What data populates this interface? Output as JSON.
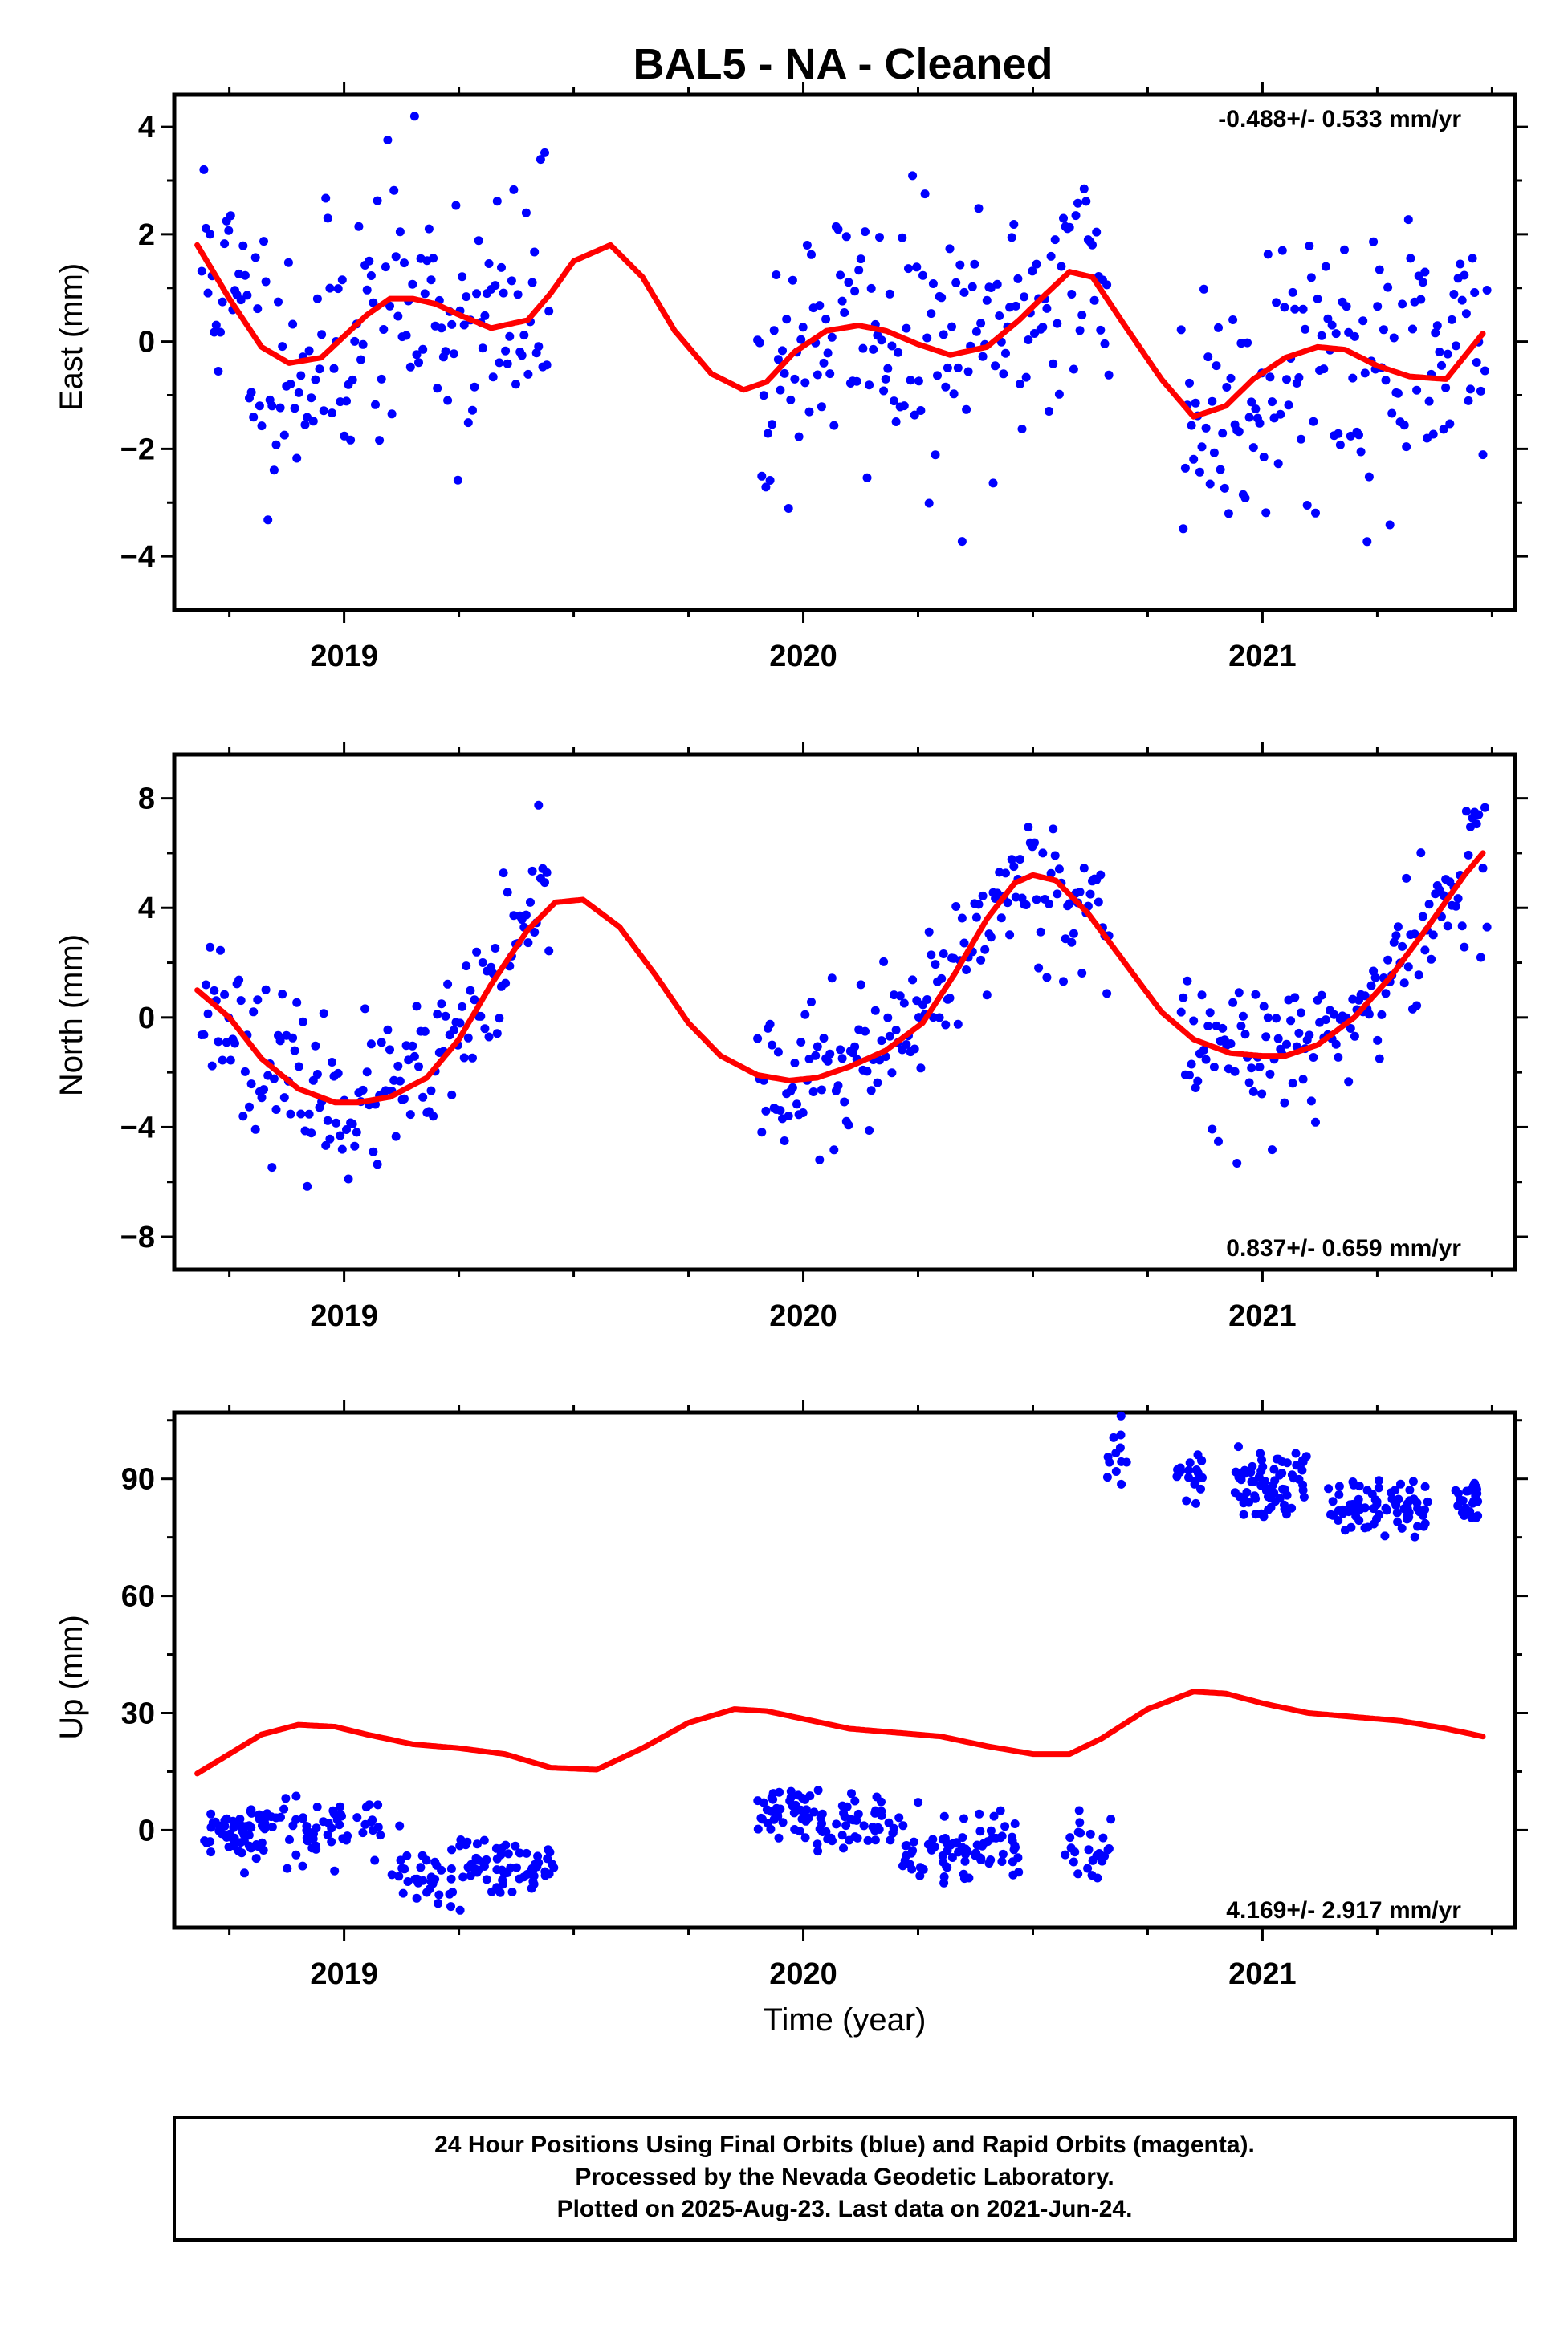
{
  "figure": {
    "title": "BAL5  - NA - Cleaned",
    "xlabel": "Time (year)",
    "footer": [
      "24 Hour Positions Using Final Orbits (blue) and Rapid Orbits (magenta).",
      "Processed by the Nevada Geodetic Laboratory.",
      "Plotted on 2025-Aug-23. Last data on 2021-Jun-24."
    ]
  },
  "chart_data": [
    {
      "type": "scatter",
      "panel": "east",
      "ylabel": "East (mm)",
      "rate": "-0.488+/- 0.533 mm/yr",
      "xlim": [
        2018.63,
        2021.55
      ],
      "ylim": [
        -5.0,
        4.6
      ],
      "xticks": [
        2019,
        2020,
        2021
      ],
      "yticks": [
        -4,
        -2,
        0,
        2,
        4
      ],
      "point_color": "#0000ff",
      "line_color": "#ff0000",
      "gaps": [
        [
          2019.45,
          2019.9
        ],
        [
          2020.67,
          2020.82
        ]
      ],
      "seed": 11,
      "scatter_sigma": 1.25,
      "series": [
        {
          "name": "model",
          "x": [
            2018.68,
            2018.75,
            2018.82,
            2018.88,
            2018.95,
            2019.0,
            2019.05,
            2019.1,
            2019.15,
            2019.2,
            2019.25,
            2019.32,
            2019.4,
            2019.45,
            2019.5,
            2019.58,
            2019.65,
            2019.72,
            2019.8,
            2019.87,
            2019.92,
            2019.98,
            2020.05,
            2020.12,
            2020.18,
            2020.25,
            2020.32,
            2020.4,
            2020.47,
            2020.53,
            2020.58,
            2020.63,
            2020.7,
            2020.78,
            2020.85,
            2020.92,
            2020.98,
            2021.05,
            2021.12,
            2021.18,
            2021.25,
            2021.32,
            2021.4,
            2021.48
          ],
          "y": [
            1.8,
            0.8,
            -0.1,
            -0.4,
            -0.3,
            0.1,
            0.5,
            0.8,
            0.8,
            0.7,
            0.5,
            0.25,
            0.4,
            0.9,
            1.5,
            1.8,
            1.2,
            0.2,
            -0.6,
            -0.9,
            -0.75,
            -0.2,
            0.2,
            0.3,
            0.2,
            -0.05,
            -0.25,
            -0.1,
            0.4,
            0.9,
            1.3,
            1.2,
            0.3,
            -0.7,
            -1.4,
            -1.2,
            -0.7,
            -0.3,
            -0.1,
            -0.15,
            -0.45,
            -0.65,
            -0.7,
            0.15
          ]
        }
      ]
    },
    {
      "type": "scatter",
      "panel": "north",
      "ylabel": "North (mm)",
      "rate": "0.837+/- 0.659 mm/yr",
      "xlim": [
        2018.63,
        2021.55
      ],
      "ylim": [
        -9.2,
        9.6
      ],
      "xticks": [
        2019,
        2020,
        2021
      ],
      "yticks": [
        -8,
        -4,
        0,
        4,
        8
      ],
      "point_color": "#0000ff",
      "line_color": "#ff0000",
      "gaps": [
        [
          2019.45,
          2019.9
        ],
        [
          2020.67,
          2020.82
        ]
      ],
      "seed": 23,
      "scatter_sigma": 1.35,
      "series": [
        {
          "name": "model",
          "x": [
            2018.68,
            2018.75,
            2018.82,
            2018.9,
            2018.98,
            2019.03,
            2019.1,
            2019.18,
            2019.25,
            2019.32,
            2019.4,
            2019.46,
            2019.52,
            2019.6,
            2019.68,
            2019.75,
            2019.82,
            2019.9,
            2019.97,
            2020.03,
            2020.1,
            2020.18,
            2020.26,
            2020.33,
            2020.4,
            2020.46,
            2020.5,
            2020.55,
            2020.62,
            2020.7,
            2020.78,
            2020.85,
            2020.93,
            2021.0,
            2021.05,
            2021.12,
            2021.2,
            2021.28,
            2021.36,
            2021.44,
            2021.48
          ],
          "y": [
            1.0,
            0.0,
            -1.5,
            -2.6,
            -3.1,
            -3.1,
            -2.9,
            -2.2,
            -0.8,
            1.2,
            3.2,
            4.2,
            4.3,
            3.3,
            1.5,
            -0.2,
            -1.4,
            -2.1,
            -2.3,
            -2.2,
            -1.8,
            -1.2,
            -0.2,
            1.6,
            3.6,
            4.9,
            5.2,
            5.0,
            3.8,
            2.0,
            0.2,
            -0.8,
            -1.3,
            -1.4,
            -1.4,
            -1.0,
            0.0,
            1.5,
            3.3,
            5.2,
            6.0
          ]
        }
      ]
    },
    {
      "type": "scatter",
      "panel": "up",
      "ylabel": "Up (mm)",
      "rate": "4.169+/- 2.917 mm/yr",
      "xlim": [
        2018.63,
        2021.55
      ],
      "ylim": [
        -25,
        107
      ],
      "xticks": [
        2019,
        2020,
        2021
      ],
      "yticks": [
        0,
        30,
        60,
        90
      ],
      "point_color": "#0000ff",
      "line_color": "#ff0000",
      "seed": 37,
      "scatter_sigma": 4.0,
      "series": [
        {
          "name": "model",
          "x": [
            2018.68,
            2018.75,
            2018.82,
            2018.9,
            2018.98,
            2019.05,
            2019.15,
            2019.25,
            2019.35,
            2019.45,
            2019.55,
            2019.65,
            2019.75,
            2019.85,
            2019.92,
            2020.0,
            2020.1,
            2020.2,
            2020.3,
            2020.4,
            2020.5,
            2020.58,
            2020.65,
            2020.75,
            2020.85,
            2020.92,
            2021.0,
            2021.1,
            2021.2,
            2021.3,
            2021.4,
            2021.48
          ],
          "y": [
            14.5,
            19.5,
            24.5,
            27,
            26.5,
            24.5,
            22,
            21,
            19.5,
            16,
            15.5,
            21,
            27.5,
            31,
            30.5,
            28.5,
            26,
            25,
            24,
            21.5,
            19.5,
            19.5,
            23.5,
            31,
            35.5,
            35,
            32.5,
            30,
            29,
            28,
            26,
            24
          ]
        },
        {
          "name": "final_segments",
          "segments": [
            {
              "x0": 2018.69,
              "x1": 2018.98,
              "mean": -1,
              "n": 90
            },
            {
              "x0": 2018.98,
              "x1": 2019.08,
              "mean": 2,
              "n": 20
            },
            {
              "x0": 2019.1,
              "x1": 2019.47,
              "mean": -11,
              "n": 100
            },
            {
              "x0": 2019.9,
              "x1": 2020.2,
              "mean": 3,
              "n": 90
            },
            {
              "x0": 2020.2,
              "x1": 2020.47,
              "mean": -5,
              "n": 80
            },
            {
              "x0": 2020.57,
              "x1": 2020.67,
              "mean": -4,
              "n": 24
            },
            {
              "x0": 2020.65,
              "x1": 2020.71,
              "mean": 95,
              "n": 12
            },
            {
              "x0": 2020.81,
              "x1": 2020.87,
              "mean": 89,
              "n": 20
            },
            {
              "x0": 2020.94,
              "x1": 2021.1,
              "mean": 89,
              "n": 70
            },
            {
              "x0": 2021.14,
              "x1": 2021.36,
              "mean": 83,
              "n": 80
            },
            {
              "x0": 2021.42,
              "x1": 2021.48,
              "mean": 85,
              "n": 25
            }
          ]
        }
      ]
    }
  ]
}
